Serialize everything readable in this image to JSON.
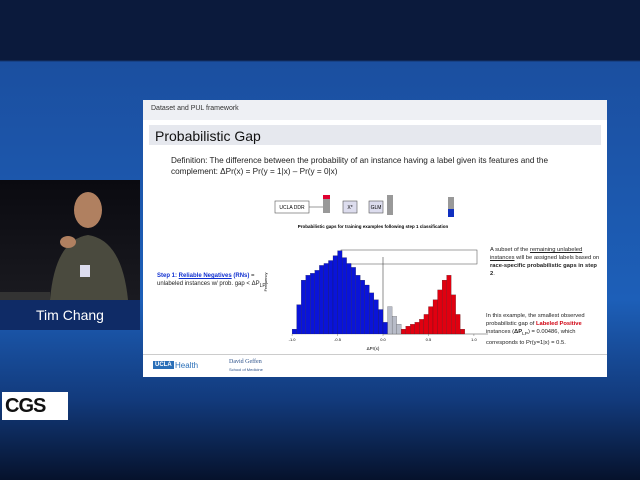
{
  "speaker": {
    "name": "Tim Chang"
  },
  "logo": {
    "text": "CGS"
  },
  "slide": {
    "header": "Dataset and PUL framework",
    "title": "Probabilistic Gap",
    "definition": [
      "Definition: The difference between the probability of an instance having a label given its features and the",
      "complement: ΔPr(x) = Pr(y = 1|x) – Pr(y = 0|x)"
    ],
    "diagram": {
      "source": "UCLA DDR",
      "feature": "X*",
      "model": "GLM"
    },
    "step1": {
      "lead": "Step 1: ",
      "term": "Reliable Negatives",
      "abbr": "(RNs)",
      "rest": " = unlabeled instances w/ prob. gap < ΔP",
      "sub": "LP"
    },
    "note1": {
      "a": "A subset of the ",
      "b": "remaining unlabeled instances",
      "c": " will be assigned labels based on ",
      "d": "race-specific probabilistic gaps in step 2",
      "e": "."
    },
    "note2": {
      "a": "In this example, the smallest observed probabilistic gap of ",
      "b": "Labeled Positive",
      "c": " instances (",
      "d": "ΔP",
      "e": "LP",
      "f": ") = 0.00486, which corresponds to Pr(y=1|x) = 0.5."
    },
    "footer": {
      "ucla": "UCLA",
      "health": "Health",
      "school": "David Geffen",
      "school_sub": "School of Medicine"
    }
  },
  "chart_data": {
    "type": "histogram",
    "title": "Probabilistic gaps for training examples following step 1 classification",
    "x_label": "ΔPr(x)",
    "y_label": "Frequency",
    "xlim": [
      -1.1,
      1.1
    ],
    "xticks": [
      {
        "value": -1,
        "label": "-1.0"
      },
      -0.5,
      {
        "value": 0,
        "label": "0.0"
      },
      0.5,
      {
        "value": 1,
        "label": "1.0"
      }
    ],
    "ylim": [
      0,
      100
    ],
    "series": [
      {
        "color": "#0a14d8",
        "bins": [
          -1.0,
          -0.95,
          -0.9,
          -0.85,
          -0.8,
          -0.75,
          -0.7,
          -0.65,
          -0.6,
          -0.55,
          -0.5,
          -0.45,
          -0.4,
          -0.35,
          -0.3,
          -0.25,
          -0.2,
          -0.15,
          -0.1,
          -0.05,
          0.0,
          0.05
        ],
        "counts": [
          5,
          30,
          55,
          60,
          62,
          65,
          70,
          72,
          75,
          80,
          85,
          78,
          72,
          68,
          60,
          55,
          50,
          42,
          35,
          25,
          12
        ]
      },
      {
        "color": "#b8bcc8",
        "bins": [
          0.05,
          0.1,
          0.15,
          0.2
        ],
        "counts": [
          28,
          18,
          10
        ]
      },
      {
        "color": "#e00010",
        "bins": [
          0.2,
          0.25,
          0.3,
          0.35,
          0.4,
          0.45,
          0.5,
          0.55,
          0.6,
          0.65,
          0.7,
          0.75,
          0.8,
          0.85,
          0.9
        ],
        "counts": [
          5,
          8,
          10,
          12,
          15,
          20,
          28,
          35,
          45,
          55,
          60,
          40,
          20,
          5
        ]
      }
    ]
  }
}
